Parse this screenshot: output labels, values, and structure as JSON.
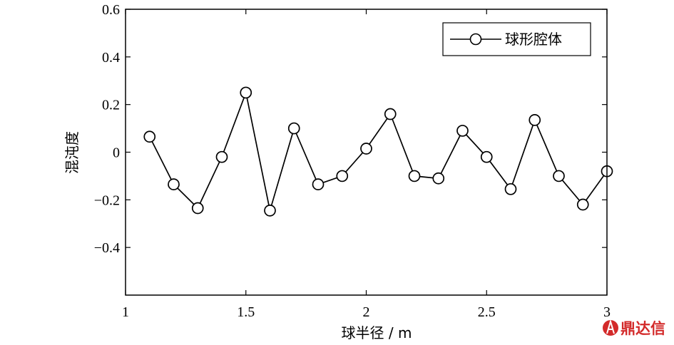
{
  "chart_data": {
    "type": "line",
    "title": "",
    "xlabel": "球半径 / m",
    "ylabel": "混沌度",
    "xlim": [
      1,
      3
    ],
    "ylim": [
      -0.6,
      0.6
    ],
    "xticks": [
      "1",
      "1.5",
      "2",
      "2.5",
      "3"
    ],
    "yticks": [
      "0.6",
      "0.4",
      "0.2",
      "0",
      "−0.2",
      "−0.4"
    ],
    "grid": false,
    "legend_position": "top-right",
    "series": [
      {
        "name": "球形腔体",
        "marker": "open-circle",
        "color": "#000000",
        "x": [
          1.1,
          1.2,
          1.3,
          1.4,
          1.5,
          1.6,
          1.7,
          1.8,
          1.9,
          2.0,
          2.1,
          2.2,
          2.3,
          2.4,
          2.5,
          2.6,
          2.7,
          2.8,
          2.9,
          3.0
        ],
        "y": [
          0.065,
          -0.135,
          -0.235,
          -0.02,
          0.25,
          -0.245,
          0.1,
          -0.135,
          -0.1,
          0.015,
          0.16,
          -0.1,
          -0.11,
          0.09,
          -0.02,
          -0.155,
          0.135,
          -0.1,
          -0.22,
          -0.08
        ]
      }
    ]
  },
  "watermark": {
    "text": "鼎达信",
    "icon": "tower-logo-icon",
    "color": "#d32a2a"
  }
}
